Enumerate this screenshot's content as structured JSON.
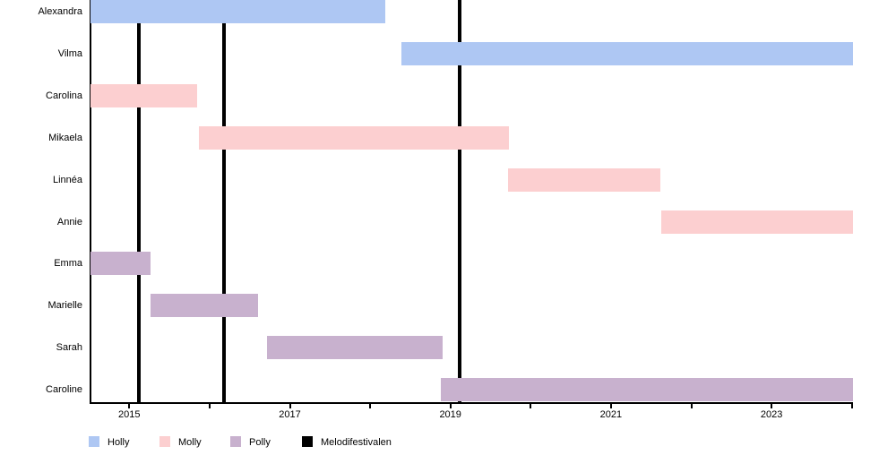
{
  "chart_data": {
    "type": "gantt",
    "title": "",
    "x_axis": {
      "domain": [
        2014.52,
        2024.02
      ],
      "tick_years": [
        2015,
        2016,
        2017,
        2018,
        2019,
        2020,
        2021,
        2022,
        2023,
        2024
      ],
      "labeled_years": [
        "2015",
        "2017",
        "2019",
        "2021",
        "2023"
      ],
      "grid": false
    },
    "groups": [
      {
        "name": "Holly",
        "color": "#aec7f3"
      },
      {
        "name": "Molly",
        "color": "#fccfd0"
      },
      {
        "name": "Polly",
        "color": "#c8b1ce"
      }
    ],
    "rows": [
      {
        "label": "Alexandra",
        "group": "Holly",
        "start": 2014.52,
        "end": 2018.19
      },
      {
        "label": "Vilma",
        "group": "Holly",
        "start": 2018.39,
        "end": 2024.02
      },
      {
        "label": "Carolina",
        "group": "Molly",
        "start": 2014.52,
        "end": 2015.85
      },
      {
        "label": "Mikaela",
        "group": "Molly",
        "start": 2015.87,
        "end": 2019.73
      },
      {
        "label": "Linnéa",
        "group": "Molly",
        "start": 2019.72,
        "end": 2021.61
      },
      {
        "label": "Annie",
        "group": "Molly",
        "start": 2021.63,
        "end": 2024.02
      },
      {
        "label": "Emma",
        "group": "Polly",
        "start": 2014.52,
        "end": 2015.26
      },
      {
        "label": "Marielle",
        "group": "Polly",
        "start": 2015.27,
        "end": 2016.6
      },
      {
        "label": "Sarah",
        "group": "Polly",
        "start": 2016.71,
        "end": 2018.9
      },
      {
        "label": "Caroline",
        "group": "Polly",
        "start": 2018.88,
        "end": 2024.02
      }
    ],
    "events": {
      "name": "Melodifestivalen",
      "color": "#000000",
      "years": [
        2015.12,
        2016.18,
        2019.12
      ]
    },
    "legend": {
      "position": "bottom-left",
      "items": [
        {
          "label": "Holly",
          "color": "#aec7f3"
        },
        {
          "label": "Molly",
          "color": "#fccfd0"
        },
        {
          "label": "Polly",
          "color": "#c8b1ce"
        },
        {
          "label": "Melodifestivalen",
          "color": "#000000"
        }
      ]
    }
  }
}
